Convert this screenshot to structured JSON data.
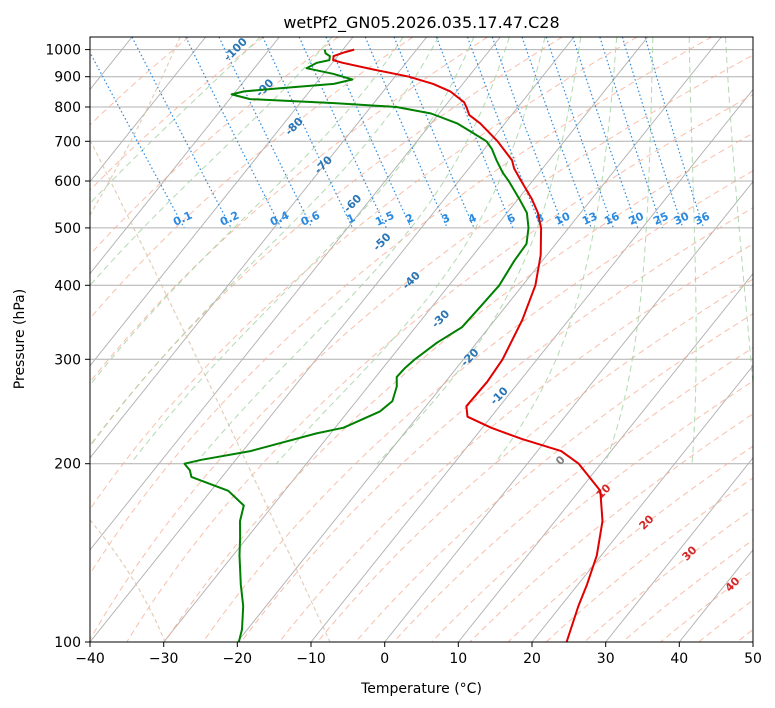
{
  "chart_data": {
    "type": "skew-t",
    "title": "wetPf2_GN05.2026.035.17.47.C28",
    "xlabel": "Temperature (°C)",
    "ylabel": "Pressure (hPa)",
    "xlim": [
      -40,
      50
    ],
    "ylim": [
      1050,
      100
    ],
    "x_ticks": [
      -40,
      -30,
      -20,
      -10,
      0,
      10,
      20,
      30,
      40,
      50
    ],
    "y_ticks": [
      100,
      200,
      300,
      400,
      500,
      600,
      700,
      800,
      900,
      1000
    ],
    "grid": true,
    "series": [
      {
        "name": "Temperature",
        "color": "#e00000",
        "points": [
          [
            1000,
            -5.5
          ],
          [
            990,
            -7
          ],
          [
            975,
            -9
          ],
          [
            960,
            -9.5
          ],
          [
            950,
            -8.5
          ],
          [
            925,
            -5
          ],
          [
            900,
            -1
          ],
          [
            875,
            1.5
          ],
          [
            850,
            3
          ],
          [
            825,
            3.5
          ],
          [
            815,
            3.7
          ],
          [
            800,
            3.5
          ],
          [
            775,
            3
          ],
          [
            750,
            3.6
          ],
          [
            700,
            4.0
          ],
          [
            650,
            3.9
          ],
          [
            630,
            3.3
          ],
          [
            600,
            2.9
          ],
          [
            560,
            2.4
          ],
          [
            530,
            1.7
          ],
          [
            500,
            0.5
          ],
          [
            450,
            -2.5
          ],
          [
            400,
            -6.5
          ],
          [
            350,
            -12
          ],
          [
            300,
            -19
          ],
          [
            275,
            -23.5
          ],
          [
            250,
            -29
          ],
          [
            240,
            -30
          ],
          [
            230,
            -28
          ],
          [
            220,
            -25
          ],
          [
            210,
            -21
          ],
          [
            200,
            -20
          ],
          [
            180,
            -20
          ],
          [
            160,
            -23
          ],
          [
            140,
            -27.5
          ],
          [
            125,
            -32
          ],
          [
            115,
            -35.5
          ],
          [
            100,
            -41
          ]
        ]
      },
      {
        "name": "Dewpoint",
        "color": "#008000",
        "points": [
          [
            1000,
            -9.5
          ],
          [
            985,
            -9.8
          ],
          [
            975,
            -9.5
          ],
          [
            960,
            -10
          ],
          [
            950,
            -12
          ],
          [
            930,
            -14
          ],
          [
            910,
            -11
          ],
          [
            890,
            -9
          ],
          [
            875,
            -12
          ],
          [
            860,
            -20
          ],
          [
            850,
            -25
          ],
          [
            840,
            -27
          ],
          [
            825,
            -25
          ],
          [
            812,
            -14
          ],
          [
            800,
            -6
          ],
          [
            780,
            -2
          ],
          [
            750,
            0.5
          ],
          [
            720,
            1.7
          ],
          [
            700,
            2.5
          ],
          [
            680,
            2.4
          ],
          [
            650,
            1.8
          ],
          [
            620,
            1.3
          ],
          [
            600,
            1.2
          ],
          [
            560,
            0.7
          ],
          [
            530,
            0.2
          ],
          [
            500,
            -1.2
          ],
          [
            470,
            -3.2
          ],
          [
            440,
            -6.7
          ],
          [
            400,
            -11.4
          ],
          [
            370,
            -16
          ],
          [
            340,
            -21
          ],
          [
            320,
            -26.1
          ],
          [
            300,
            -30.9
          ],
          [
            290,
            -33.2
          ],
          [
            280,
            -35.3
          ],
          [
            270,
            -36.3
          ],
          [
            255,
            -38.5
          ],
          [
            245,
            -41.3
          ],
          [
            230,
            -48
          ],
          [
            225,
            -52.3
          ],
          [
            210,
            -63.2
          ],
          [
            203,
            -70.8
          ],
          [
            200,
            -73.5
          ],
          [
            195,
            -73.5
          ],
          [
            190,
            -74
          ],
          [
            180,
            -70.5
          ],
          [
            170,
            -70
          ],
          [
            160,
            -72.2
          ],
          [
            150,
            -74
          ],
          [
            140,
            -76
          ],
          [
            125,
            -79
          ],
          [
            115,
            -81
          ],
          [
            105,
            -83.7
          ],
          [
            100,
            -85.5
          ]
        ]
      }
    ],
    "dry_adiabat_labels": [
      "-100",
      "-90",
      "-80",
      "-70",
      "-60",
      "-50",
      "-40",
      "-30",
      "-20",
      "-10"
    ],
    "moist_adiabat_labels": [
      "0",
      "10",
      "20",
      "30",
      "40"
    ],
    "mixing_ratio_labels": [
      "0.1",
      "0.2",
      "0.4",
      "0.6",
      "1",
      "1.5",
      "2",
      "3",
      "4",
      "6",
      "8",
      "10",
      "13",
      "16",
      "20",
      "25",
      "30",
      "36"
    ],
    "colors": {
      "background_grid": "#b0b0b0",
      "dry_adiabat": "#f5a98e",
      "moist_adiabat": "#9fcf9f",
      "mixing_ratio": "#2a8ae0",
      "dry_label": "#2a75b5",
      "moist_label": "#d62728",
      "moist_zero_label": "#7f7f7f",
      "hodograph_arc": "#d9c3a8"
    }
  }
}
